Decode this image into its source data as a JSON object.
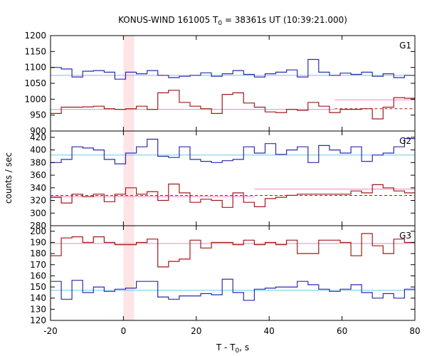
{
  "chart_data": {
    "type": "line",
    "title": "KONUS-WIND 161005 T",
    "title_sub": "0",
    "title_rest": " = 38361s UT (10:39:21.000)",
    "xlabel": "T - T",
    "xlabel_sub": "0",
    "xlabel_rest": ", s",
    "ylabel": "counts / sec",
    "xlim": [
      -20,
      80
    ],
    "xticks": [
      -20,
      0,
      20,
      40,
      60,
      80
    ],
    "highlight": {
      "x0": 0,
      "x1": 2.944,
      "color": "#fde4e6"
    },
    "colors": {
      "blue": "#2b2bb0",
      "red": "#a01a1a",
      "cyan": "#6fc8e8",
      "pink": "#ff80c0"
    },
    "panels": [
      {
        "label": "G1",
        "ylim": [
          900,
          1200
        ],
        "yticks": [
          900,
          950,
          1000,
          1050,
          1100,
          1150,
          1200
        ],
        "series": [
          {
            "color": "blue",
            "x0": -20,
            "dx": 2.944,
            "values": [
              1100,
              1095,
              1070,
              1088,
              1090,
              1085,
              1063,
              1085,
              1080,
              1090,
              1075,
              1068,
              1072,
              1075,
              1083,
              1072,
              1080,
              1090,
              1078,
              1070,
              1080,
              1085,
              1092,
              1070,
              1125,
              1085,
              1075,
              1082,
              1078,
              1085,
              1072,
              1080,
              1068,
              1075,
              1065
            ]
          },
          {
            "color": "red",
            "x0": -20,
            "dx": 2.944,
            "values": [
              955,
              975,
              975,
              976,
              978,
              970,
              968,
              970,
              978,
              968,
              1020,
              1028,
              990,
              978,
              970,
              955,
              1015,
              1020,
              988,
              975,
              960,
              958,
              968,
              965,
              990,
              978,
              958,
              968,
              968,
              970,
              938,
              975,
              1005,
              1003,
              985,
              992,
              990
            ]
          }
        ],
        "bg_lines": [
          {
            "color": "cyan",
            "dash": false,
            "segments": [
              [
                -20,
                80,
                1075
              ]
            ]
          },
          {
            "color": "pink",
            "dash": false,
            "segments": [
              [
                -20,
                58,
                968
              ],
              [
                58,
                80,
                998
              ]
            ]
          },
          {
            "color": "red",
            "dash": true,
            "segments": [
              [
                58,
                80,
                970
              ]
            ]
          }
        ]
      },
      {
        "label": "G2",
        "ylim": [
          280,
          430
        ],
        "yticks": [
          280,
          300,
          320,
          340,
          360,
          380,
          400,
          420
        ],
        "series": [
          {
            "color": "blue",
            "x0": -20,
            "dx": 2.944,
            "values": [
              380,
              385,
              405,
              403,
              400,
              385,
              378,
              395,
              405,
              417,
              390,
              388,
              405,
              385,
              382,
              380,
              383,
              385,
              405,
              395,
              410,
              393,
              400,
              405,
              380,
              407,
              400,
              395,
              405,
              382,
              392,
              395,
              405,
              418,
              410,
              395,
              390
            ]
          },
          {
            "color": "red",
            "x0": -20,
            "dx": 2.944,
            "values": [
              325,
              316,
              330,
              326,
              330,
              318,
              330,
              340,
              330,
              334,
              320,
              346,
              332,
              317,
              322,
              320,
              309,
              332,
              317,
              310,
              323,
              325,
              328,
              330,
              330,
              330,
              330,
              330,
              335,
              332,
              345,
              340,
              335,
              332,
              337,
              342,
              350
            ]
          }
        ],
        "bg_lines": [
          {
            "color": "cyan",
            "dash": false,
            "segments": [
              [
                -20,
                80,
                392
              ]
            ]
          },
          {
            "color": "pink",
            "dash": false,
            "segments": [
              [
                -20,
                36,
                326
              ],
              [
                36,
                80,
                338
              ]
            ]
          },
          {
            "color": "red",
            "dash": true,
            "segments": [
              [
                -20,
                80,
                328
              ]
            ]
          }
        ]
      },
      {
        "label": "G3",
        "ylim": [
          120,
          205
        ],
        "yticks": [
          120,
          130,
          140,
          150,
          160,
          170,
          180,
          190,
          200
        ],
        "series": [
          {
            "color": "red",
            "x0": -20,
            "dx": 2.944,
            "values": [
              178,
              194,
              195,
              190,
              195,
              190,
              188,
              188,
              190,
              193,
              168,
              173,
              175,
              192,
              185,
              190,
              190,
              188,
              192,
              188,
              190,
              188,
              192,
              180,
              180,
              192,
              192,
              190,
              178,
              198,
              187,
              180,
              193,
              190,
              192,
              195,
              193
            ]
          },
          {
            "color": "blue",
            "x0": -20,
            "dx": 2.944,
            "values": [
              155,
              139,
              156,
              145,
              150,
              146,
              148,
              149,
              155,
              155,
              141,
              139,
              142,
              142,
              144,
              143,
              157,
              145,
              138,
              148,
              149,
              150,
              150,
              155,
              152,
              148,
              146,
              148,
              152,
              145,
              140,
              144,
              140,
              148,
              148,
              142,
              142
            ]
          }
        ],
        "bg_lines": [
          {
            "color": "cyan",
            "dash": false,
            "segments": [
              [
                -20,
                80,
                147
              ]
            ]
          },
          {
            "color": "pink",
            "dash": false,
            "segments": [
              [
                -20,
                80,
                189
              ]
            ]
          }
        ]
      }
    ]
  }
}
